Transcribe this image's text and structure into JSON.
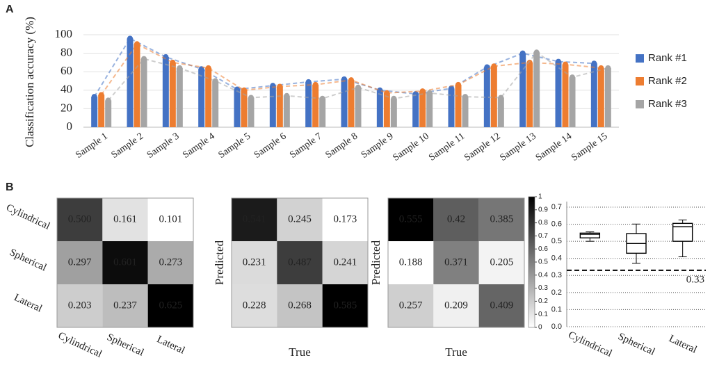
{
  "chart_data": [
    {
      "type": "bar",
      "panel": "A",
      "ylabel": "Classification accuracy (%)",
      "categories": [
        "Sample 1",
        "Sample 2",
        "Sample 3",
        "Sample 4",
        "Sample 5",
        "Sample 6",
        "Sample 7",
        "Sample 8",
        "Sample 9",
        "Sample 10",
        "Sample 11",
        "Sample 12",
        "Sample 13",
        "Sample 14",
        "Sample 15"
      ],
      "series": [
        {
          "name": "Rank #1",
          "color": "#4472c4",
          "values": [
            33,
            96,
            76,
            63,
            41,
            45,
            49,
            52,
            40,
            36,
            42,
            65,
            80,
            71,
            69
          ]
        },
        {
          "name": "Rank #2",
          "color": "#ed7d31",
          "values": [
            35,
            90,
            70,
            64,
            40,
            44,
            46,
            51,
            37,
            39,
            46,
            66,
            70,
            68,
            64
          ]
        },
        {
          "name": "Rank #3",
          "color": "#a5a5a5",
          "values": [
            29,
            74,
            64,
            50,
            32,
            34,
            31,
            43,
            31,
            37,
            33,
            32,
            81,
            54,
            64
          ]
        }
      ],
      "ylim": [
        0,
        100
      ],
      "yticks": [
        0,
        20,
        40,
        60,
        80,
        100
      ],
      "grid": true,
      "legend": "right"
    },
    {
      "type": "heatmap",
      "panel": "B",
      "x_categories": [
        "Cylindrical",
        "Spherical",
        "Lateral"
      ],
      "y_categories": [
        "Cylindrical",
        "Spherical",
        "Lateral"
      ],
      "values": [
        [
          0.5,
          0.161,
          0.101
        ],
        [
          0.297,
          0.601,
          0.273
        ],
        [
          0.203,
          0.237,
          0.625
        ]
      ],
      "value_labels": [
        [
          "0.500",
          "0.161",
          "0.101"
        ],
        [
          "0.297",
          "0.601",
          "0.273"
        ],
        [
          "0.203",
          "0.237",
          "0.625"
        ]
      ]
    },
    {
      "type": "heatmap",
      "xlabel": "True",
      "ylabel": "Predicted",
      "values": [
        [
          0.541,
          0.245,
          0.173
        ],
        [
          0.231,
          0.487,
          0.241
        ],
        [
          0.228,
          0.268,
          0.585
        ]
      ]
    },
    {
      "type": "heatmap",
      "xlabel": "True",
      "ylabel": "Predicted",
      "values": [
        [
          0.555,
          0.42,
          0.385
        ],
        [
          0.188,
          0.371,
          0.205
        ],
        [
          0.257,
          0.209,
          0.409
        ]
      ],
      "colorbar": {
        "lim": [
          0,
          1
        ],
        "ticks": [
          0,
          0.1,
          0.2,
          0.3,
          0.4,
          0.5,
          0.6,
          0.7,
          0.8,
          0.9,
          1
        ]
      }
    },
    {
      "type": "box",
      "categories": [
        "Cylindrical",
        "Spherical",
        "Lateral"
      ],
      "boxes": [
        {
          "min": 0.5,
          "q1": 0.52,
          "median": 0.541,
          "q3": 0.548,
          "max": 0.555
        },
        {
          "min": 0.371,
          "q1": 0.43,
          "median": 0.487,
          "q3": 0.545,
          "max": 0.601
        },
        {
          "min": 0.409,
          "q1": 0.5,
          "median": 0.585,
          "q3": 0.605,
          "max": 0.625
        }
      ],
      "ylim": [
        0,
        0.7
      ],
      "yticks": [
        {
          "value": 0,
          "label": "0.0"
        },
        0.1,
        0.2,
        0.3,
        0.4,
        0.5,
        0.6,
        0.7
      ],
      "grid": true,
      "reference_line": {
        "value": 0.33,
        "label": "0.33"
      }
    }
  ]
}
